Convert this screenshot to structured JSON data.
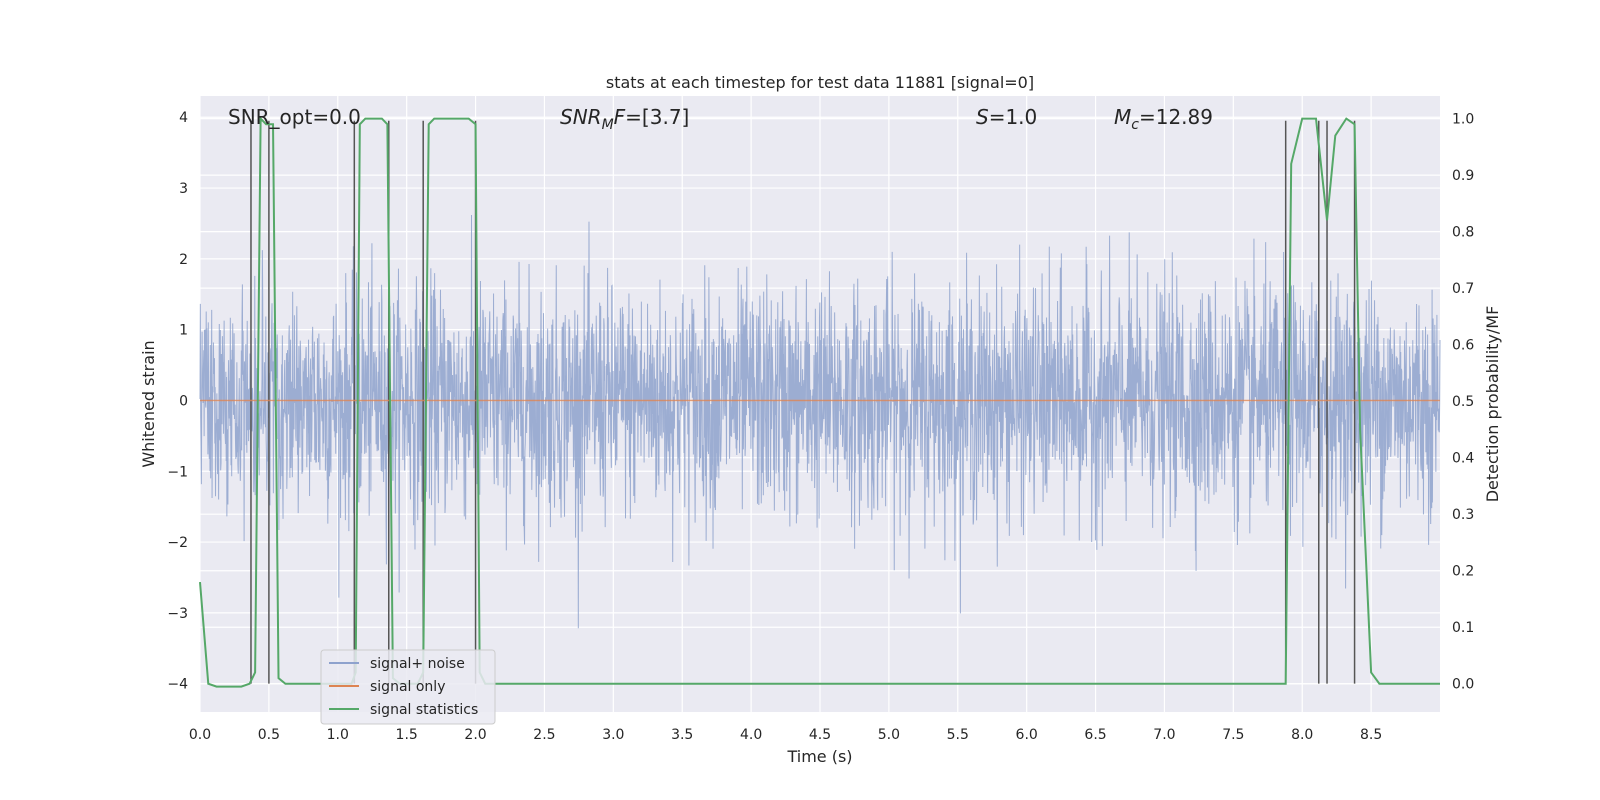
{
  "chart_data": {
    "type": "line",
    "title": "stats at each timestep for test data 11881 [signal=0]",
    "xlabel": "Time (s)",
    "ylabel": "Whitened strain",
    "ylabel_right": "Detection probability/MF",
    "xlim": [
      0.0,
      9.0
    ],
    "ylim": [
      -4.4,
      4.3
    ],
    "ylim_right": [
      -0.05,
      1.04
    ],
    "grid": true,
    "legend_placement": "lower-left",
    "x_ticks": [
      "0.0",
      "0.5",
      "1.0",
      "1.5",
      "2.0",
      "2.5",
      "3.0",
      "3.5",
      "4.0",
      "4.5",
      "5.0",
      "5.5",
      "6.0",
      "6.5",
      "7.0",
      "7.5",
      "8.0",
      "8.5"
    ],
    "y_ticks": [
      "−4",
      "−3",
      "−2",
      "−1",
      "0",
      "1",
      "2",
      "3",
      "4"
    ],
    "y_ticks_right": [
      "0.0",
      "0.1",
      "0.2",
      "0.3",
      "0.4",
      "0.5",
      "0.6",
      "0.7",
      "0.8",
      "0.9",
      "1.0"
    ],
    "annotations": {
      "snr_opt": "SNR_opt=0.0",
      "snr_mf": "=[3.7]",
      "s": "=1.0",
      "mc": "=12.89"
    },
    "series": [
      {
        "name": "signal+ noise",
        "color": "#8ea2cd",
        "envelope_peak": 3.5,
        "envelope_trough": -3.55,
        "std": 0.8
      },
      {
        "name": "signal only",
        "color": "#dd8452",
        "values_constant": 0.0
      },
      {
        "name": "signal statistics",
        "color": "#55a868",
        "axis": "right",
        "x": [
          0.0,
          0.06,
          0.12,
          0.2,
          0.3,
          0.36,
          0.4,
          0.44,
          0.48,
          0.53,
          0.57,
          0.62,
          1.1,
          1.13,
          1.16,
          1.2,
          1.32,
          1.36,
          1.4,
          1.45,
          1.58,
          1.62,
          1.66,
          1.7,
          1.95,
          2.0,
          2.03,
          2.07,
          7.88,
          7.92,
          8.0,
          8.1,
          8.18,
          8.24,
          8.32,
          8.38,
          8.42,
          8.5,
          8.56,
          9.0
        ],
        "y": [
          0.18,
          0.0,
          -0.005,
          -0.005,
          -0.005,
          0.0,
          0.02,
          1.0,
          0.99,
          0.99,
          0.01,
          0.0,
          0.0,
          0.02,
          0.99,
          1.0,
          1.0,
          0.99,
          0.01,
          0.0,
          0.0,
          0.02,
          0.99,
          1.0,
          1.0,
          0.99,
          0.02,
          0.0,
          0.0,
          0.92,
          1.0,
          1.0,
          0.82,
          0.97,
          1.0,
          0.99,
          0.45,
          0.02,
          0.0,
          0.0
        ]
      },
      {
        "name": "markers",
        "color": "#555555",
        "type": "vlines",
        "x": [
          0.37,
          0.5,
          1.12,
          1.37,
          1.62,
          2.0,
          7.88,
          8.12,
          8.18,
          8.38
        ],
        "ymin": -4.0,
        "ymax": 3.95
      }
    ]
  },
  "legend": {
    "signal_noise": "signal+ noise",
    "signal_only": "signal only",
    "signal_statistics": "signal statistics"
  }
}
